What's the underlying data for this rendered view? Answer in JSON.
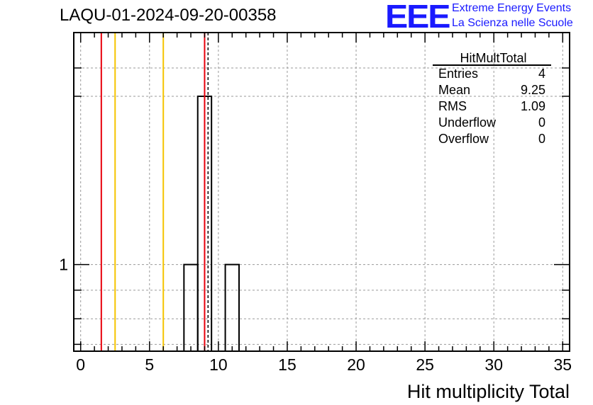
{
  "header": {
    "run_title": "LAQU-01-2024-09-20-00358",
    "logo_text": "EEE",
    "logo_line1": "Extreme Energy Events",
    "logo_line2": "La Scienza nelle Scuole"
  },
  "stats": {
    "name": "HitMultTotal",
    "rows": [
      {
        "label": "Entries",
        "value": "4"
      },
      {
        "label": "Mean",
        "value": "9.25"
      },
      {
        "label": "RMS",
        "value": "1.09"
      },
      {
        "label": "Underflow",
        "value": "0"
      },
      {
        "label": "Overflow",
        "value": "0"
      }
    ]
  },
  "chart_data": {
    "type": "histogram",
    "title": "LAQU-01-2024-09-20-00358",
    "xlabel": "Hit multiplicity Total",
    "ylabel": "",
    "y_scale": "log",
    "xlim": [
      -0.5,
      35.5
    ],
    "ylim": [
      0.7,
      2.6
    ],
    "x_ticks": [
      0,
      5,
      10,
      15,
      20,
      25,
      30,
      35
    ],
    "y_tick_labels": [
      {
        "value": 1,
        "label": "1"
      }
    ],
    "grid": true,
    "bins": [
      {
        "x_low": 7.5,
        "x_high": 8.5,
        "count": 1
      },
      {
        "x_low": 8.5,
        "x_high": 9.5,
        "count": 2
      },
      {
        "x_low": 10.5,
        "x_high": 11.5,
        "count": 1
      }
    ],
    "vertical_lines": [
      {
        "x": 1.5,
        "color": "#e8000b",
        "style": "solid"
      },
      {
        "x": 2.5,
        "color": "#f5c400",
        "style": "solid"
      },
      {
        "x": 6.0,
        "color": "#f5c400",
        "style": "solid"
      },
      {
        "x": 9.0,
        "color": "#e8000b",
        "style": "solid"
      },
      {
        "x": 9.25,
        "color": "#000000",
        "style": "dashed"
      }
    ]
  }
}
